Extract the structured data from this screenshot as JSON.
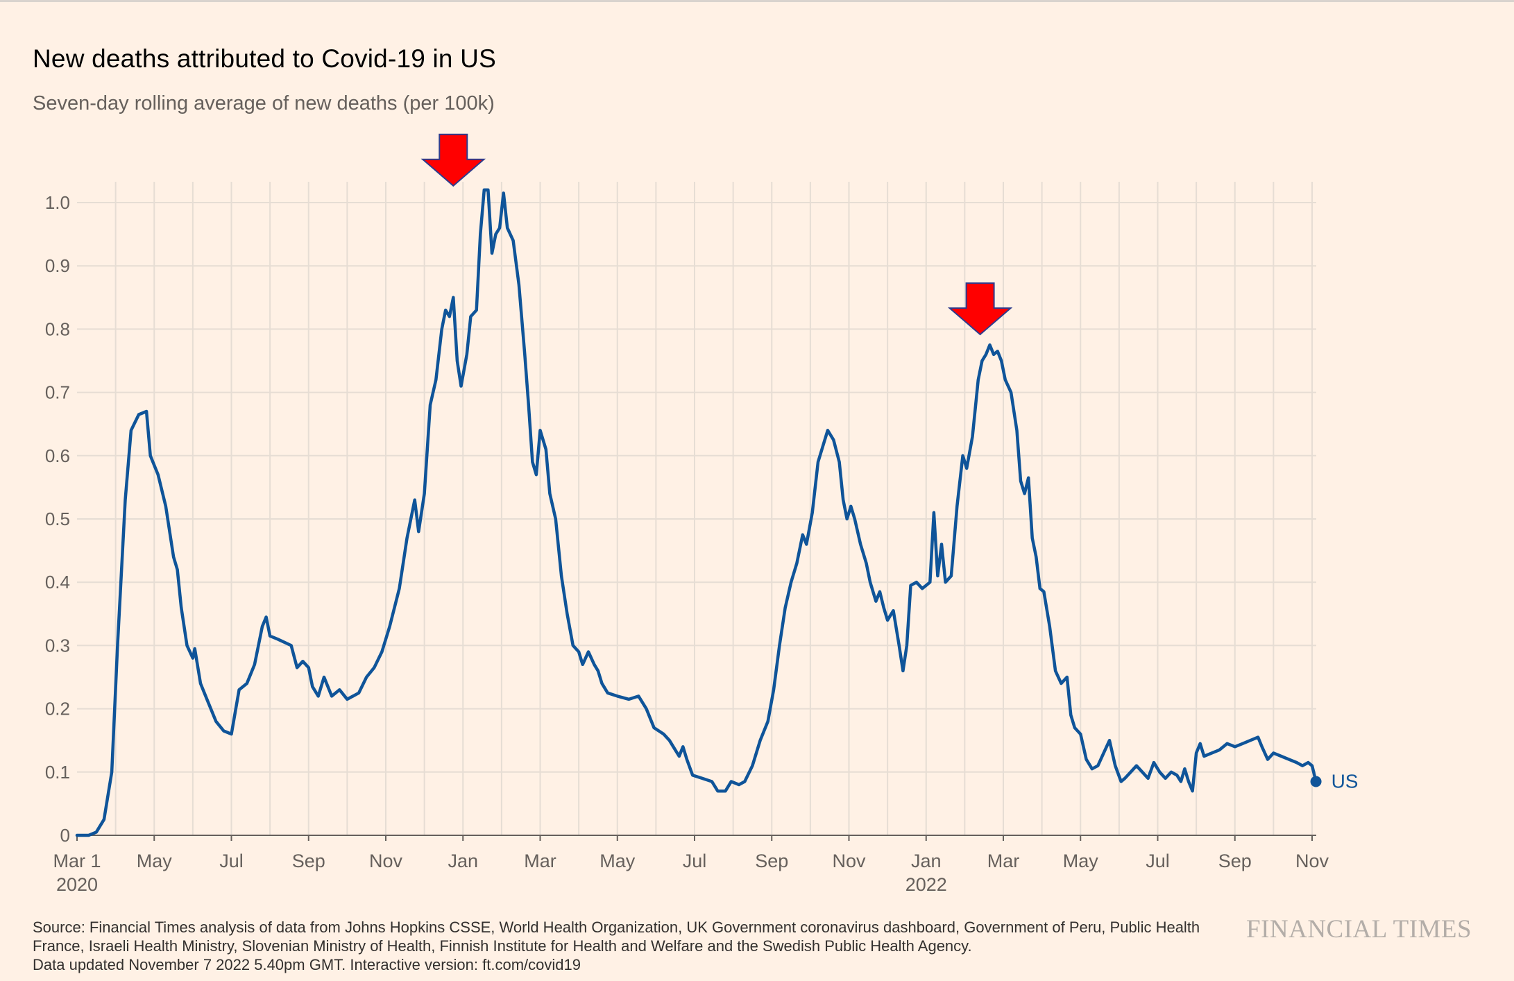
{
  "header": {
    "title": "New deaths attributed to Covid-19 in US",
    "subtitle": "Seven-day rolling average of new deaths (per 100k)"
  },
  "footer": {
    "source_line1": "Source: Financial Times analysis of data from Johns Hopkins CSSE, World Health Organization, UK Government coronavirus dashboard, Government of Peru, Public Health",
    "source_line2": "France, Israeli Health Ministry, Slovenian Ministry of Health, Finnish Institute for Health and Welfare and the Swedish Public Health Agency.",
    "source_line3": "Data updated November 7 2022 5.40pm GMT. Interactive version: ft.com/covid19",
    "brand": "FINANCIAL TIMES"
  },
  "chart_data": {
    "type": "line",
    "title": "New deaths attributed to Covid-19 in US",
    "subtitle": "Seven-day rolling average of new deaths (per 100k)",
    "xlabel": "",
    "ylabel": "",
    "x_unit": "months since Mar 1 2020",
    "xlim": [
      0,
      32.2
    ],
    "ylim": [
      0,
      1.0
    ],
    "grid": true,
    "y_ticks": [
      0,
      0.1,
      0.2,
      0.3,
      0.4,
      0.5,
      0.6,
      0.7,
      0.8,
      0.9,
      1.0
    ],
    "y_tick_labels": [
      "0",
      "0.1",
      "0.2",
      "0.3",
      "0.4",
      "0.5",
      "0.6",
      "0.7",
      "0.8",
      "0.9",
      "1.0"
    ],
    "x_ticks": [
      {
        "x": 0,
        "label": "Mar 1",
        "sublabel": "2020"
      },
      {
        "x": 2,
        "label": "May",
        "sublabel": ""
      },
      {
        "x": 4,
        "label": "Jul",
        "sublabel": ""
      },
      {
        "x": 6,
        "label": "Sep",
        "sublabel": ""
      },
      {
        "x": 8,
        "label": "Nov",
        "sublabel": ""
      },
      {
        "x": 10,
        "label": "Jan",
        "sublabel": ""
      },
      {
        "x": 12,
        "label": "Mar",
        "sublabel": ""
      },
      {
        "x": 14,
        "label": "May",
        "sublabel": ""
      },
      {
        "x": 16,
        "label": "Jul",
        "sublabel": ""
      },
      {
        "x": 18,
        "label": "Sep",
        "sublabel": ""
      },
      {
        "x": 20,
        "label": "Nov",
        "sublabel": ""
      },
      {
        "x": 22,
        "label": "Jan",
        "sublabel": "2022"
      },
      {
        "x": 24,
        "label": "Mar",
        "sublabel": ""
      },
      {
        "x": 26,
        "label": "May",
        "sublabel": ""
      },
      {
        "x": 28,
        "label": "Jul",
        "sublabel": ""
      },
      {
        "x": 30,
        "label": "Sep",
        "sublabel": ""
      },
      {
        "x": 32,
        "label": "Nov",
        "sublabel": ""
      }
    ],
    "series": [
      {
        "name": "US",
        "color": "#0F5499",
        "end_label": "US",
        "points": [
          [
            0,
            0
          ],
          [
            0.3,
            0
          ],
          [
            0.5,
            0.005
          ],
          [
            0.7,
            0.025
          ],
          [
            0.9,
            0.1
          ],
          [
            1.05,
            0.3
          ],
          [
            1.25,
            0.53
          ],
          [
            1.4,
            0.64
          ],
          [
            1.6,
            0.665
          ],
          [
            1.8,
            0.67
          ],
          [
            1.9,
            0.6
          ],
          [
            2.1,
            0.57
          ],
          [
            2.3,
            0.52
          ],
          [
            2.5,
            0.44
          ],
          [
            2.6,
            0.42
          ],
          [
            2.7,
            0.36
          ],
          [
            2.85,
            0.3
          ],
          [
            3.0,
            0.28
          ],
          [
            3.05,
            0.295
          ],
          [
            3.2,
            0.24
          ],
          [
            3.4,
            0.21
          ],
          [
            3.6,
            0.18
          ],
          [
            3.8,
            0.165
          ],
          [
            4.0,
            0.16
          ],
          [
            4.2,
            0.23
          ],
          [
            4.4,
            0.24
          ],
          [
            4.6,
            0.27
          ],
          [
            4.8,
            0.33
          ],
          [
            4.9,
            0.345
          ],
          [
            5.0,
            0.315
          ],
          [
            5.2,
            0.31
          ],
          [
            5.55,
            0.3
          ],
          [
            5.7,
            0.265
          ],
          [
            5.85,
            0.275
          ],
          [
            6.0,
            0.265
          ],
          [
            6.1,
            0.235
          ],
          [
            6.25,
            0.22
          ],
          [
            6.4,
            0.25
          ],
          [
            6.6,
            0.22
          ],
          [
            6.8,
            0.23
          ],
          [
            7.0,
            0.215
          ],
          [
            7.3,
            0.225
          ],
          [
            7.5,
            0.25
          ],
          [
            7.7,
            0.265
          ],
          [
            7.9,
            0.29
          ],
          [
            8.1,
            0.33
          ],
          [
            8.35,
            0.39
          ],
          [
            8.55,
            0.47
          ],
          [
            8.75,
            0.53
          ],
          [
            8.85,
            0.48
          ],
          [
            9.0,
            0.54
          ],
          [
            9.15,
            0.68
          ],
          [
            9.3,
            0.72
          ],
          [
            9.45,
            0.8
          ],
          [
            9.55,
            0.83
          ],
          [
            9.65,
            0.82
          ],
          [
            9.75,
            0.85
          ],
          [
            9.85,
            0.75
          ],
          [
            9.95,
            0.71
          ],
          [
            10.1,
            0.76
          ],
          [
            10.2,
            0.82
          ],
          [
            10.35,
            0.83
          ],
          [
            10.45,
            0.95
          ],
          [
            10.55,
            1.02
          ],
          [
            10.65,
            1.02
          ],
          [
            10.75,
            0.92
          ],
          [
            10.85,
            0.95
          ],
          [
            10.95,
            0.96
          ],
          [
            11.05,
            1.015
          ],
          [
            11.15,
            0.96
          ],
          [
            11.3,
            0.94
          ],
          [
            11.45,
            0.87
          ],
          [
            11.6,
            0.76
          ],
          [
            11.7,
            0.68
          ],
          [
            11.8,
            0.59
          ],
          [
            11.9,
            0.57
          ],
          [
            12.0,
            0.64
          ],
          [
            12.15,
            0.61
          ],
          [
            12.25,
            0.54
          ],
          [
            12.4,
            0.5
          ],
          [
            12.55,
            0.41
          ],
          [
            12.7,
            0.35
          ],
          [
            12.85,
            0.3
          ],
          [
            13.0,
            0.29
          ],
          [
            13.1,
            0.27
          ],
          [
            13.25,
            0.29
          ],
          [
            13.4,
            0.27
          ],
          [
            13.5,
            0.26
          ],
          [
            13.6,
            0.24
          ],
          [
            13.75,
            0.225
          ],
          [
            14.0,
            0.22
          ],
          [
            14.3,
            0.215
          ],
          [
            14.55,
            0.22
          ],
          [
            14.75,
            0.2
          ],
          [
            14.95,
            0.17
          ],
          [
            15.2,
            0.16
          ],
          [
            15.35,
            0.15
          ],
          [
            15.5,
            0.135
          ],
          [
            15.6,
            0.125
          ],
          [
            15.7,
            0.14
          ],
          [
            15.8,
            0.12
          ],
          [
            15.95,
            0.095
          ],
          [
            16.2,
            0.09
          ],
          [
            16.45,
            0.085
          ],
          [
            16.6,
            0.07
          ],
          [
            16.8,
            0.07
          ],
          [
            16.95,
            0.085
          ],
          [
            17.15,
            0.08
          ],
          [
            17.3,
            0.085
          ],
          [
            17.5,
            0.11
          ],
          [
            17.7,
            0.15
          ],
          [
            17.9,
            0.18
          ],
          [
            18.05,
            0.23
          ],
          [
            18.2,
            0.3
          ],
          [
            18.35,
            0.36
          ],
          [
            18.5,
            0.4
          ],
          [
            18.65,
            0.43
          ],
          [
            18.8,
            0.475
          ],
          [
            18.9,
            0.46
          ],
          [
            19.05,
            0.51
          ],
          [
            19.2,
            0.59
          ],
          [
            19.35,
            0.62
          ],
          [
            19.45,
            0.64
          ],
          [
            19.6,
            0.625
          ],
          [
            19.75,
            0.59
          ],
          [
            19.85,
            0.53
          ],
          [
            19.95,
            0.5
          ],
          [
            20.05,
            0.52
          ],
          [
            20.15,
            0.5
          ],
          [
            20.3,
            0.46
          ],
          [
            20.45,
            0.43
          ],
          [
            20.55,
            0.4
          ],
          [
            20.7,
            0.37
          ],
          [
            20.8,
            0.385
          ],
          [
            20.9,
            0.36
          ],
          [
            21.0,
            0.34
          ],
          [
            21.15,
            0.355
          ],
          [
            21.3,
            0.3
          ],
          [
            21.4,
            0.26
          ],
          [
            21.5,
            0.3
          ],
          [
            21.6,
            0.395
          ],
          [
            21.75,
            0.4
          ],
          [
            21.9,
            0.39
          ],
          [
            22.0,
            0.395
          ],
          [
            22.1,
            0.4
          ],
          [
            22.2,
            0.51
          ],
          [
            22.3,
            0.41
          ],
          [
            22.4,
            0.46
          ],
          [
            22.5,
            0.4
          ],
          [
            22.65,
            0.41
          ],
          [
            22.8,
            0.52
          ],
          [
            22.95,
            0.6
          ],
          [
            23.05,
            0.58
          ],
          [
            23.2,
            0.63
          ],
          [
            23.35,
            0.72
          ],
          [
            23.45,
            0.75
          ],
          [
            23.55,
            0.76
          ],
          [
            23.65,
            0.775
          ],
          [
            23.75,
            0.76
          ],
          [
            23.85,
            0.765
          ],
          [
            23.95,
            0.75
          ],
          [
            24.05,
            0.72
          ],
          [
            24.2,
            0.7
          ],
          [
            24.35,
            0.64
          ],
          [
            24.45,
            0.56
          ],
          [
            24.55,
            0.54
          ],
          [
            24.65,
            0.565
          ],
          [
            24.75,
            0.47
          ],
          [
            24.85,
            0.44
          ],
          [
            24.95,
            0.39
          ],
          [
            25.05,
            0.385
          ],
          [
            25.2,
            0.33
          ],
          [
            25.35,
            0.26
          ],
          [
            25.5,
            0.24
          ],
          [
            25.65,
            0.25
          ],
          [
            25.75,
            0.19
          ],
          [
            25.85,
            0.17
          ],
          [
            26.0,
            0.16
          ],
          [
            26.15,
            0.12
          ],
          [
            26.3,
            0.105
          ],
          [
            26.45,
            0.11
          ],
          [
            26.6,
            0.13
          ],
          [
            26.75,
            0.15
          ],
          [
            26.9,
            0.11
          ],
          [
            27.05,
            0.085
          ],
          [
            27.15,
            0.09
          ],
          [
            27.3,
            0.1
          ],
          [
            27.45,
            0.11
          ],
          [
            27.6,
            0.1
          ],
          [
            27.75,
            0.09
          ],
          [
            27.9,
            0.115
          ],
          [
            28.05,
            0.1
          ],
          [
            28.2,
            0.09
          ],
          [
            28.35,
            0.1
          ],
          [
            28.5,
            0.095
          ],
          [
            28.6,
            0.085
          ],
          [
            28.7,
            0.105
          ],
          [
            28.8,
            0.085
          ],
          [
            28.9,
            0.07
          ],
          [
            29.0,
            0.13
          ],
          [
            29.1,
            0.145
          ],
          [
            29.2,
            0.125
          ],
          [
            29.4,
            0.13
          ],
          [
            29.6,
            0.135
          ],
          [
            29.8,
            0.145
          ],
          [
            30.0,
            0.14
          ],
          [
            30.2,
            0.145
          ],
          [
            30.4,
            0.15
          ],
          [
            30.6,
            0.155
          ],
          [
            30.7,
            0.14
          ],
          [
            30.85,
            0.12
          ],
          [
            31.0,
            0.13
          ],
          [
            31.2,
            0.125
          ],
          [
            31.4,
            0.12
          ],
          [
            31.6,
            0.115
          ],
          [
            31.75,
            0.11
          ],
          [
            31.9,
            0.115
          ],
          [
            32.0,
            0.11
          ],
          [
            32.1,
            0.085
          ]
        ]
      }
    ],
    "annotations": [
      {
        "type": "arrow",
        "label": "",
        "x": 9.75,
        "y": 1.02,
        "color": "#FF0000"
      },
      {
        "type": "arrow",
        "label": "",
        "x": 23.4,
        "y": 0.785,
        "color": "#FF0000"
      }
    ]
  }
}
